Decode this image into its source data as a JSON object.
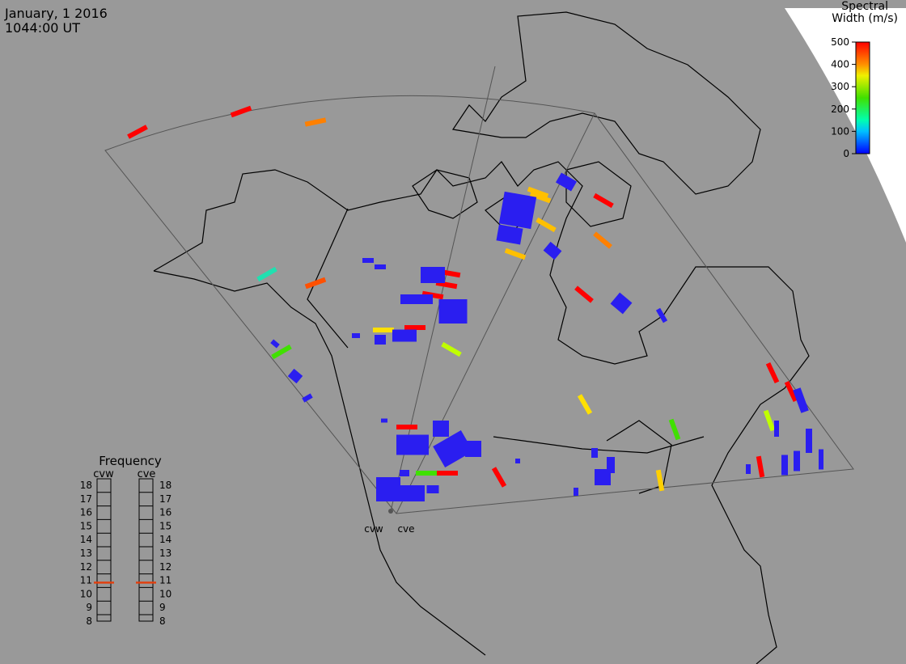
{
  "header": {
    "date": "January, 1 2016",
    "time": "1044:00 UT"
  },
  "colorbar": {
    "title_line1": "Spectral",
    "title_line2": "Width (m/s)",
    "range": [
      0,
      500
    ],
    "ticks": [
      0,
      100,
      200,
      300,
      400,
      500
    ]
  },
  "frequency": {
    "title": "Frequency",
    "range": [
      8,
      18
    ],
    "ticks": [
      8,
      9,
      10,
      11,
      12,
      13,
      14,
      15,
      16,
      17,
      18
    ],
    "radars": [
      {
        "name": "cvw",
        "value": 10.6
      },
      {
        "name": "cve",
        "value": 10.6
      }
    ]
  },
  "stations": [
    "cvw",
    "cve"
  ]
}
